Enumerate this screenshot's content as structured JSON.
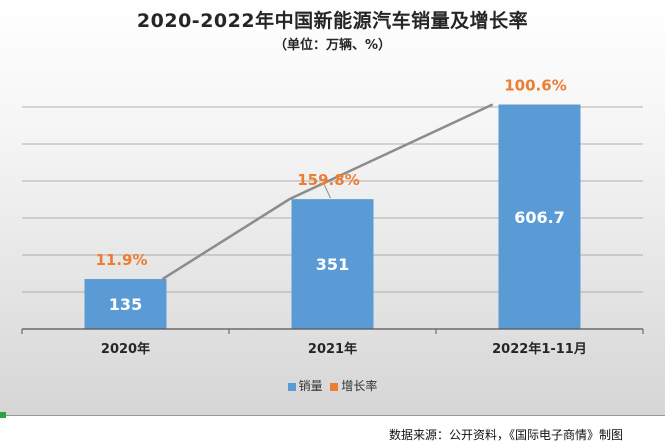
{
  "chart_data": {
    "type": "bar",
    "title": "2020-2022年中国新能源汽车销量及增长率",
    "subtitle": "（单位：万辆、%）",
    "categories": [
      "2020年",
      "2021年",
      "2022年1-11月"
    ],
    "series": [
      {
        "name": "销量",
        "type": "bar",
        "values": [
          135,
          351,
          606.7
        ],
        "labels": [
          "135",
          "351",
          "606.7"
        ],
        "color": "#5b9bd5"
      },
      {
        "name": "增长率",
        "type": "line",
        "values": [
          11.9,
          159.8,
          100.6
        ],
        "labels": [
          "11.9%",
          "159.8%",
          "100.6%"
        ],
        "color": "#ed7d31",
        "line_color": "#8c8c8c"
      }
    ],
    "ylim": [
      0,
      700
    ],
    "grid": true,
    "legend": "bottom",
    "colors": {
      "bar": "#5b9bd5",
      "line": "#8c8c8c",
      "rate_label": "#ed7d31"
    }
  },
  "source_note": "数据来源：公开资料，《国际电子商情》制图"
}
